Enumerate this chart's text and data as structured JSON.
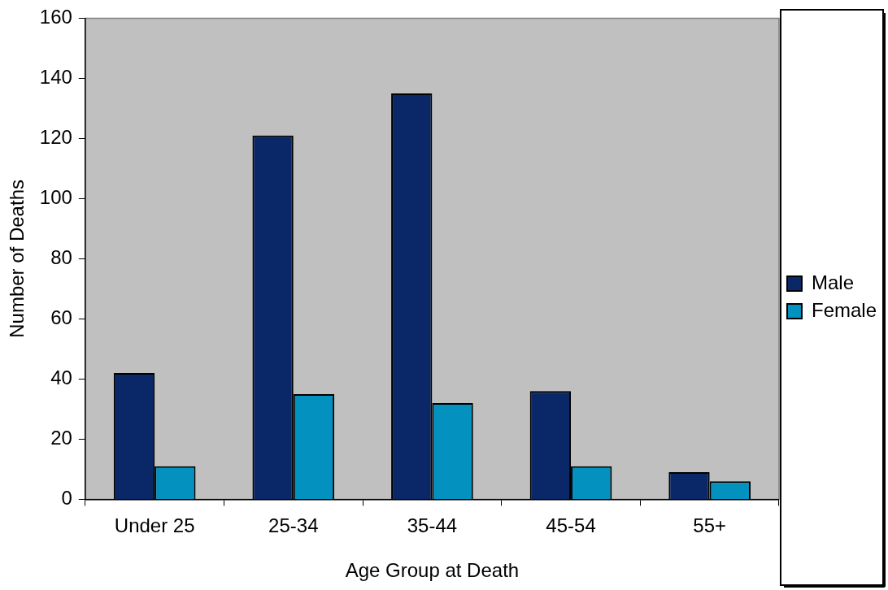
{
  "chart_data": {
    "type": "bar",
    "xlabel": "Age Group at Death",
    "ylabel": "Number of Deaths",
    "categories": [
      "Under 25",
      "25-34",
      "35-44",
      "45-54",
      "55+"
    ],
    "series": [
      {
        "name": "Male",
        "color": "#0a2868",
        "values": [
          42,
          121,
          135,
          36,
          9
        ]
      },
      {
        "name": "Female",
        "color": "#0391c0",
        "values": [
          11,
          35,
          32,
          11,
          6
        ]
      }
    ],
    "ylim": [
      0,
      160
    ],
    "yticks": [
      0,
      20,
      40,
      60,
      80,
      100,
      120,
      140,
      160
    ],
    "grid": false,
    "legend": "right"
  }
}
